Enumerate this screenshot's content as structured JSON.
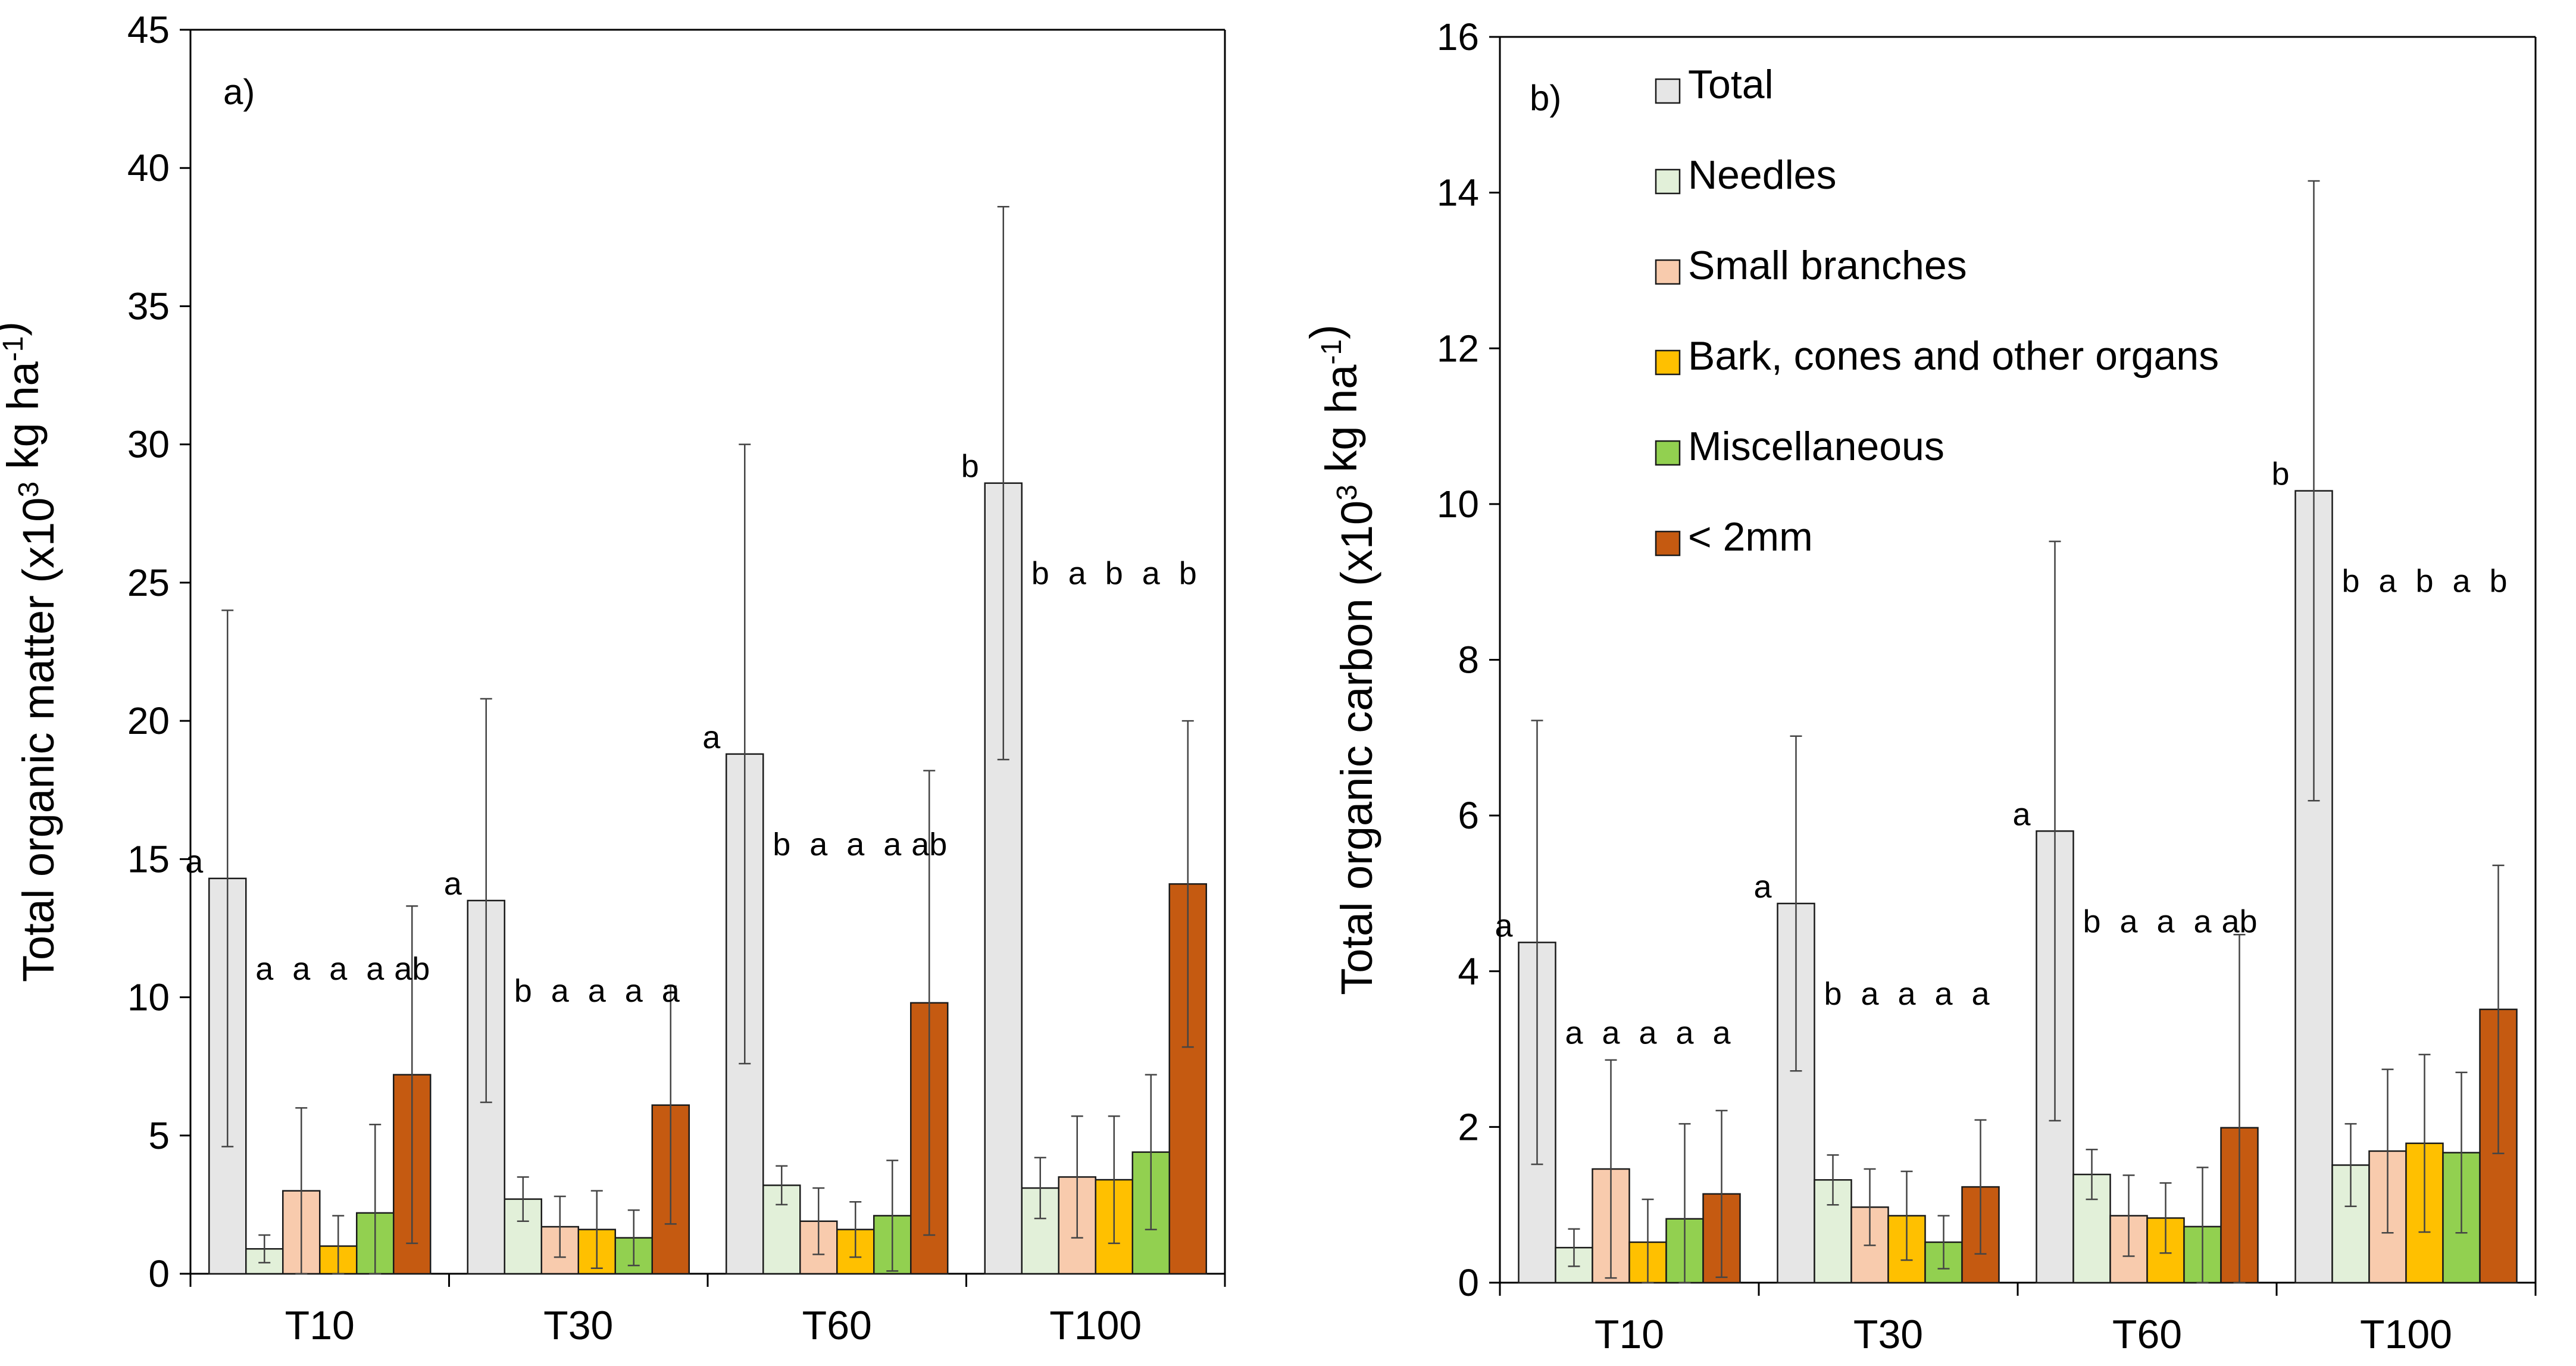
{
  "colors": {
    "Total": "#e6e6e6",
    "Needles": "#e2f0d9",
    "Small branches": "#f8cbad",
    "Bark, cones and other organs": "#ffc000",
    "Miscellaneous": "#92d050",
    "< 2mm": "#c55a11"
  },
  "legend": {
    "entries": [
      "Total",
      "Needles",
      "Small branches",
      "Bark, cones and other organs",
      "Miscellaneous",
      "< 2mm"
    ]
  },
  "chart_data": [
    {
      "type": "bar",
      "panel_label": "a)",
      "title": "",
      "xlabel": "",
      "ylabel": "Total organic matter (x10³ kg ha⁻¹)",
      "ylabel_parts": {
        "pre": "Total organic matter (x10",
        "sup1": "3",
        "mid": " kg ha",
        "sup2": "-1",
        "post": ")"
      },
      "ylim": [
        0,
        45
      ],
      "yticks": [
        0,
        5,
        10,
        15,
        20,
        25,
        30,
        35,
        40,
        45
      ],
      "grid": false,
      "categories": [
        "T10",
        "T30",
        "T60",
        "T100"
      ],
      "series": [
        {
          "name": "Total",
          "values": [
            14.3,
            13.5,
            18.8,
            28.6
          ],
          "errors": [
            9.7,
            7.3,
            11.2,
            10.0
          ],
          "letters": [
            "a",
            "a",
            "a",
            "b"
          ]
        },
        {
          "name": "Needles",
          "values": [
            0.9,
            2.7,
            3.2,
            3.1
          ],
          "errors": [
            0.5,
            0.8,
            0.7,
            1.1
          ],
          "letters": [
            "a",
            "b",
            "b",
            "b"
          ]
        },
        {
          "name": "Small branches",
          "values": [
            3.0,
            1.7,
            1.9,
            3.5
          ],
          "errors": [
            3.0,
            1.1,
            1.2,
            2.2
          ],
          "letters": [
            "a",
            "a",
            "a",
            "a"
          ]
        },
        {
          "name": "Bark, cones and other organs",
          "values": [
            1.0,
            1.6,
            1.6,
            3.4
          ],
          "errors": [
            1.1,
            1.4,
            1.0,
            2.3
          ],
          "letters": [
            "a",
            "a",
            "a",
            "b"
          ]
        },
        {
          "name": "Miscellaneous",
          "values": [
            2.2,
            1.3,
            2.1,
            4.4
          ],
          "errors": [
            3.2,
            1.0,
            2.0,
            2.8
          ],
          "letters": [
            "a",
            "a",
            "a",
            "a"
          ]
        },
        {
          "name": "< 2mm",
          "values": [
            7.2,
            6.1,
            9.8,
            14.1
          ],
          "errors": [
            6.1,
            4.3,
            8.4,
            5.9
          ],
          "letters": [
            "ab",
            "a",
            "ab",
            "b"
          ]
        }
      ]
    },
    {
      "type": "bar",
      "panel_label": "b)",
      "title": "",
      "xlabel": "",
      "ylabel": "Total organic carbon (x10³ kg ha⁻¹)",
      "ylabel_parts": {
        "pre": "Total organic carbon (x10",
        "sup1": "3",
        "mid": " kg ha",
        "sup2": "-1",
        "post": ")"
      },
      "ylim": [
        0,
        16
      ],
      "yticks": [
        0,
        2,
        4,
        6,
        8,
        10,
        12,
        14,
        16
      ],
      "grid": false,
      "legend_position": "top-left inside panel b",
      "categories": [
        "T10",
        "T30",
        "T60",
        "T100"
      ],
      "series": [
        {
          "name": "Total",
          "values": [
            4.37,
            4.87,
            5.8,
            10.17
          ],
          "errors": [
            2.85,
            2.15,
            3.72,
            3.98
          ],
          "letters": [
            "a",
            "a",
            "a",
            "b"
          ]
        },
        {
          "name": "Needles",
          "values": [
            0.45,
            1.32,
            1.39,
            1.51
          ],
          "errors": [
            0.24,
            0.32,
            0.32,
            0.53
          ],
          "letters": [
            "a",
            "b",
            "b",
            "b"
          ]
        },
        {
          "name": "Small branches",
          "values": [
            1.46,
            0.97,
            0.86,
            1.69
          ],
          "errors": [
            1.4,
            0.49,
            0.52,
            1.05
          ],
          "letters": [
            "a",
            "a",
            "a",
            "a"
          ]
        },
        {
          "name": "Bark, cones and other organs",
          "values": [
            0.52,
            0.86,
            0.83,
            1.79
          ],
          "errors": [
            0.55,
            0.57,
            0.45,
            1.14
          ],
          "letters": [
            "a",
            "a",
            "a",
            "b"
          ]
        },
        {
          "name": "Miscellaneous",
          "values": [
            0.82,
            0.52,
            0.72,
            1.67
          ],
          "errors": [
            1.22,
            0.34,
            0.76,
            1.03
          ],
          "letters": [
            "a",
            "a",
            "a",
            "a"
          ]
        },
        {
          "name": "< 2mm",
          "values": [
            1.14,
            1.23,
            1.99,
            3.51
          ],
          "errors": [
            1.07,
            0.86,
            2.48,
            1.85
          ],
          "letters": [
            "a",
            "a",
            "ab",
            "b"
          ]
        }
      ]
    }
  ]
}
